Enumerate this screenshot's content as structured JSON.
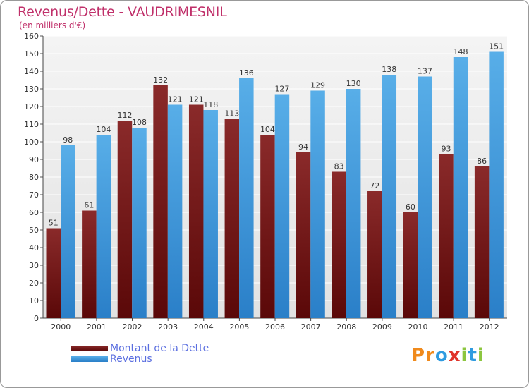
{
  "chart_data": {
    "type": "bar",
    "title": "Revenus/Dette - VAUDRIMESNIL",
    "subtitle": "(en milliers d'€)",
    "categories": [
      "2000",
      "2001",
      "2002",
      "2003",
      "2004",
      "2005",
      "2006",
      "2007",
      "2008",
      "2009",
      "2010",
      "2011",
      "2012"
    ],
    "series": [
      {
        "name": "Montant de la Dette",
        "color": "#7a1c1c",
        "values": [
          51,
          61,
          112,
          132,
          121,
          113,
          104,
          94,
          83,
          72,
          60,
          93,
          86
        ]
      },
      {
        "name": "Revenus",
        "color": "#3a98df",
        "values": [
          98,
          104,
          108,
          121,
          118,
          136,
          127,
          129,
          130,
          138,
          137,
          148,
          151
        ]
      }
    ],
    "ylim": [
      0,
      160
    ],
    "ytick_step": 10,
    "grid": true,
    "legend_position": "bottom-left"
  },
  "logo": {
    "text": "Proxiti",
    "letters": [
      "P",
      "r",
      "o",
      "x",
      "i",
      "t",
      "i"
    ],
    "colors": [
      "#f08a1c",
      "#f08a1c",
      "#2f9be0",
      "#e0342b",
      "#8cc63f",
      "#2f9be0",
      "#8cc63f"
    ]
  }
}
